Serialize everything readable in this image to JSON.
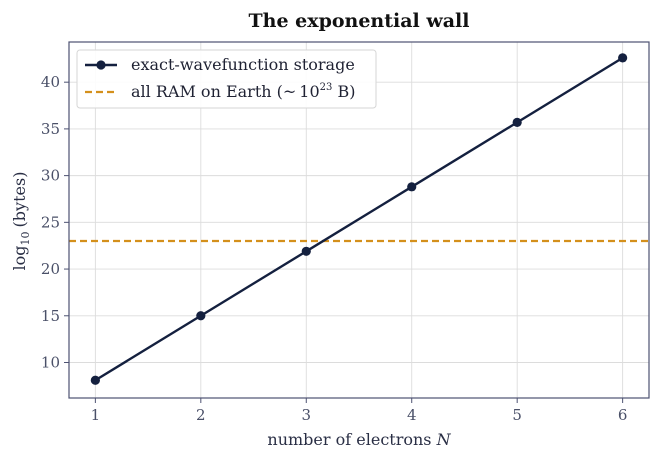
{
  "chart_data": {
    "type": "line",
    "title": "The exponential wall",
    "xlabel": "number of electrons",
    "xlabel_var": "N",
    "ylabel_prefix": "log",
    "ylabel_sub": "10",
    "ylabel_suffix": "(bytes)",
    "xlim": [
      0.75,
      6.25
    ],
    "ylim": [
      6.2,
      44.3
    ],
    "x_ticks": [
      1,
      2,
      3,
      4,
      5,
      6
    ],
    "y_ticks": [
      10,
      15,
      20,
      25,
      30,
      35,
      40
    ],
    "grid": true,
    "legend_position": "top-left",
    "series": [
      {
        "name": "exact-wavefunction storage",
        "color": "#14203f",
        "marker": "circle",
        "x": [
          1,
          2,
          3,
          4,
          5,
          6
        ],
        "y": [
          8.1,
          15.0,
          21.9,
          28.8,
          35.7,
          42.6
        ]
      }
    ],
    "reference_lines": [
      {
        "name_prefix": "all RAM on Earth (",
        "name_approx": "~",
        "name_base": "10",
        "name_exp": "23",
        "name_suffix": " B)",
        "value": 23.0,
        "color": "#d4901c",
        "style": "dashed"
      }
    ]
  }
}
